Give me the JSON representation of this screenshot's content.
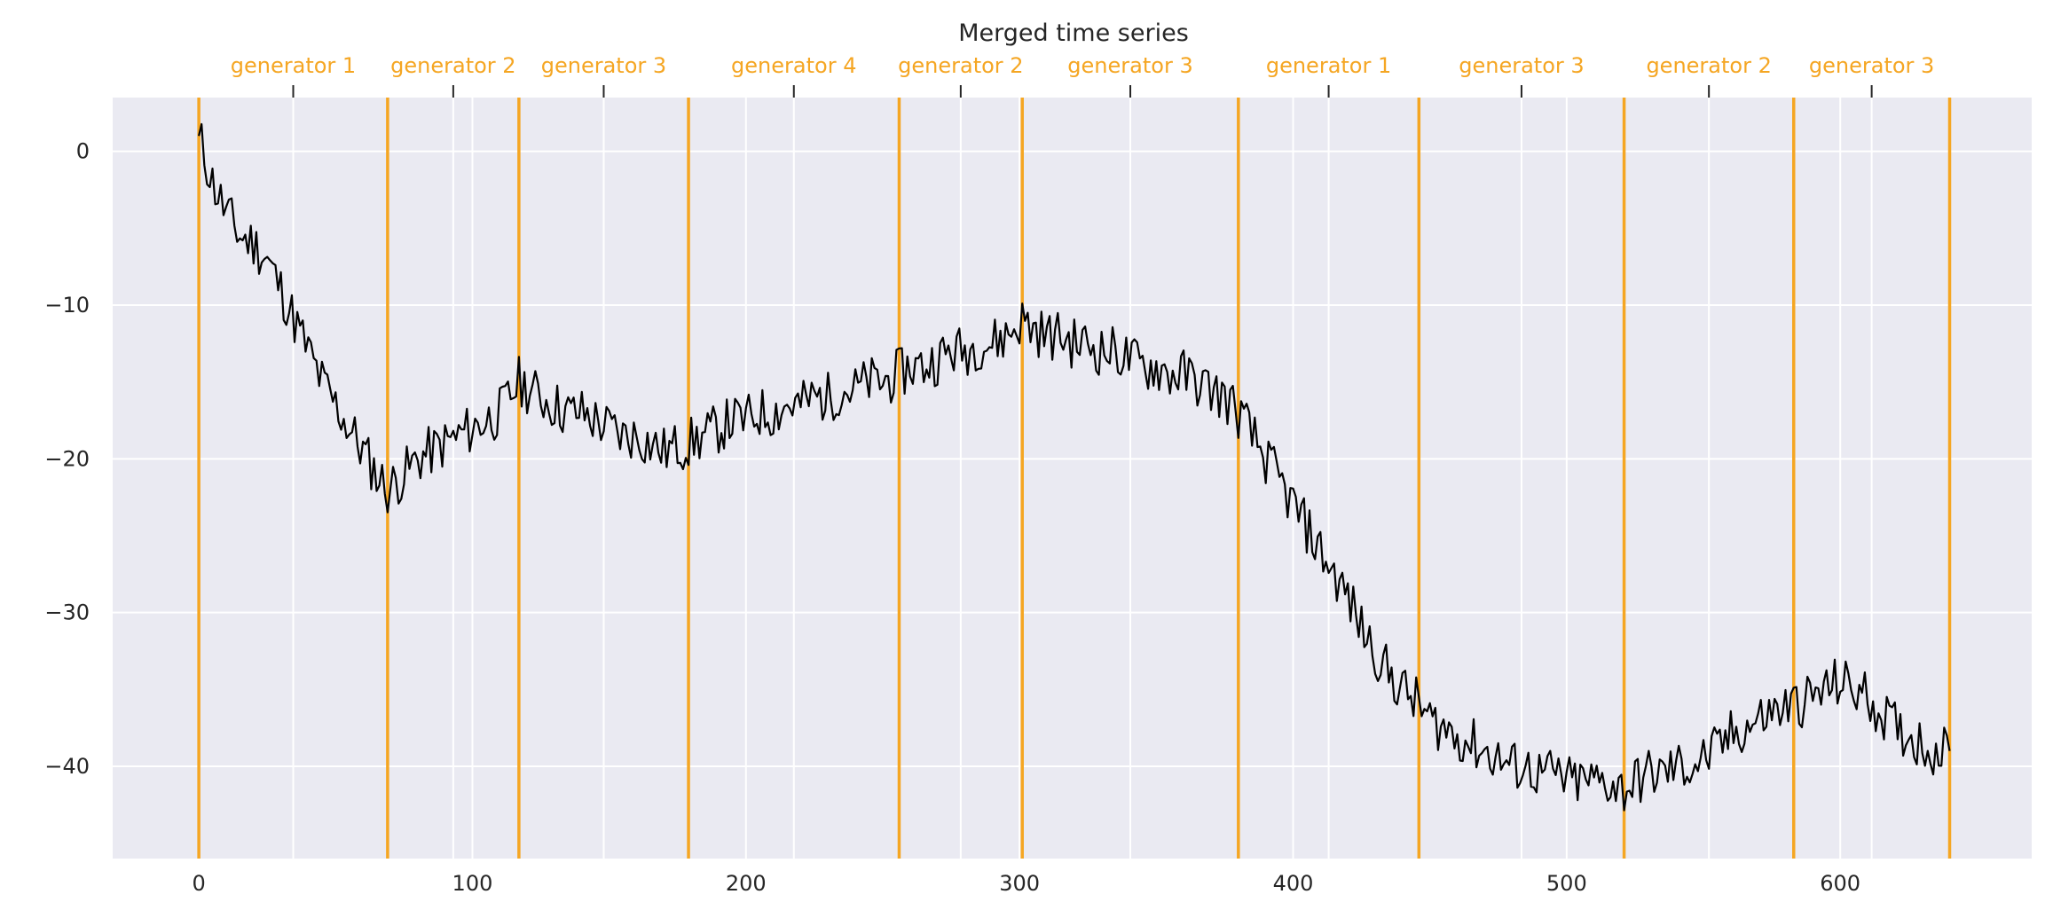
{
  "chart_data": {
    "type": "line",
    "title": "Merged time series",
    "xlabel": "",
    "ylabel": "",
    "xlim": [
      -31.5,
      670
    ],
    "ylim": [
      -46,
      3.5
    ],
    "grid": true,
    "x_ticks": [
      0,
      100,
      200,
      300,
      400,
      500,
      600
    ],
    "y_ticks": [
      0,
      -10,
      -20,
      -30,
      -40
    ],
    "tick_labels": {
      "x": [
        "0",
        "100",
        "200",
        "300",
        "400",
        "500",
        "600"
      ],
      "y": [
        "0",
        "−10",
        "−20",
        "−30",
        "−40"
      ]
    },
    "colors": {
      "background": "#eaeaf2",
      "grid": "#ffffff",
      "line": "#000000",
      "segment": "#f5a623"
    },
    "boundaries": [
      0,
      69,
      117,
      179,
      256,
      301,
      380,
      446,
      521,
      583,
      640
    ],
    "segments": [
      {
        "label": "generator 1",
        "center": 34.5
      },
      {
        "label": "generator 2",
        "center": 93
      },
      {
        "label": "generator 3",
        "center": 148
      },
      {
        "label": "generator 4",
        "center": 217.5
      },
      {
        "label": "generator 2",
        "center": 278.5
      },
      {
        "label": "generator 3",
        "center": 340.5
      },
      {
        "label": "generator 1",
        "center": 413
      },
      {
        "label": "generator 3",
        "center": 483.5
      },
      {
        "label": "generator 2",
        "center": 552
      },
      {
        "label": "generator 3",
        "center": 611.5
      }
    ],
    "series": [
      {
        "x": [
          0,
          5,
          10,
          15,
          20,
          25,
          30,
          35,
          40,
          45,
          50,
          55,
          60,
          65,
          69,
          75,
          80,
          85,
          90,
          95,
          100,
          105,
          110,
          117,
          125,
          130,
          135,
          140,
          145,
          150,
          155,
          160,
          165,
          170,
          179,
          185,
          190,
          195,
          200,
          205,
          210,
          215,
          220,
          225,
          230,
          235,
          240,
          245,
          250,
          256,
          260,
          265,
          270,
          275,
          280,
          285,
          290,
          295,
          301,
          305,
          310,
          315,
          320,
          325,
          330,
          335,
          340,
          345,
          350,
          355,
          360,
          365,
          370,
          375,
          380,
          385,
          390,
          395,
          400,
          405,
          410,
          415,
          420,
          425,
          430,
          435,
          440,
          446,
          450,
          455,
          460,
          465,
          470,
          475,
          480,
          485,
          490,
          495,
          500,
          505,
          510,
          515,
          521,
          525,
          530,
          535,
          540,
          545,
          550,
          555,
          560,
          565,
          570,
          575,
          583,
          590,
          595,
          600,
          605,
          610,
          615,
          620,
          625,
          630,
          635,
          640
        ],
        "y": [
          1,
          -2,
          -4,
          -5.5,
          -6,
          -7,
          -9,
          -11,
          -13,
          -15,
          -16.5,
          -18,
          -19.5,
          -21,
          -22,
          -21,
          -20,
          -19.5,
          -19,
          -18.5,
          -18,
          -17.5,
          -17,
          -15,
          -16,
          -16.5,
          -17,
          -17,
          -17.5,
          -18,
          -18.5,
          -18.5,
          -19,
          -19.5,
          -19,
          -18.5,
          -18,
          -17.5,
          -17.5,
          -17,
          -17,
          -16.5,
          -16.5,
          -16,
          -16,
          -15.5,
          -15.5,
          -15,
          -15,
          -14.5,
          -14,
          -14,
          -13.5,
          -13,
          -13,
          -12.5,
          -12.5,
          -12,
          -11,
          -11.5,
          -12,
          -12,
          -12.5,
          -12.5,
          -13,
          -13,
          -13.5,
          -14,
          -14,
          -14.5,
          -14.5,
          -15,
          -15.5,
          -16,
          -17,
          -18.5,
          -20,
          -21.5,
          -23,
          -24.5,
          -26,
          -27.5,
          -29,
          -31,
          -32.5,
          -34,
          -35,
          -36,
          -37,
          -37.5,
          -38,
          -38.5,
          -39,
          -39.5,
          -40,
          -40,
          -40.5,
          -40.5,
          -41,
          -41,
          -41,
          -41,
          -41.5,
          -41,
          -40.5,
          -40.5,
          -40,
          -40,
          -39.5,
          -39,
          -38,
          -37.5,
          -37,
          -36.5,
          -36,
          -35.5,
          -35,
          -34.5,
          -35,
          -35.5,
          -36.5,
          -37.5,
          -38,
          -38.5,
          -39,
          -39
        ]
      }
    ]
  }
}
